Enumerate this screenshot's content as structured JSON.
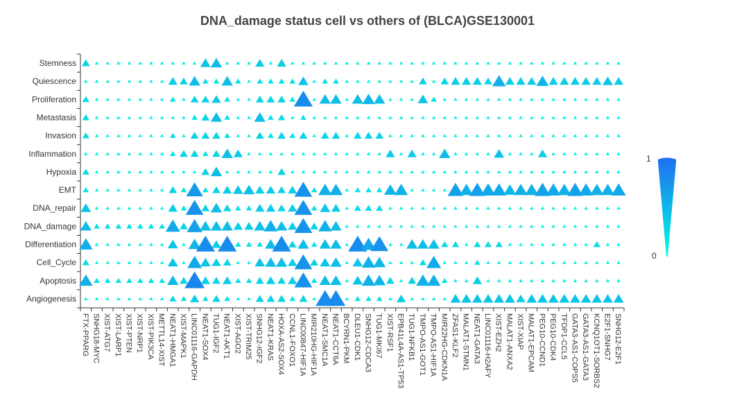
{
  "chart_data": {
    "type": "scatter",
    "title": "DNA_damage status cell vs others of (BLCA)GSE130001",
    "highlight_row": "DNA_damage",
    "highlight_color": "#ff0000",
    "colorbar": {
      "max_label": "1",
      "min_label": "0",
      "low_color": "#00ffe0",
      "high_color": "#1e6ff0"
    },
    "rows": [
      "Stemness",
      "Quiescence",
      "Proliferation",
      "Metastasis",
      "Invasion",
      "Inflammation",
      "Hypoxia",
      "EMT",
      "DNA_repair",
      "DNA_damage",
      "Differentiation",
      "Cell_Cycle",
      "Apoptosis",
      "Angiogenesis"
    ],
    "columns": [
      "FTX-PPARG",
      "SNHG18-MYC",
      "XIST-ATG7",
      "XIST-LARP1",
      "XIST-PTEN",
      "XIST-NRP1",
      "XIST-PIK3CA",
      "METTL14-XIST",
      "NEAT1-HMGA1",
      "XIST-MAPK1",
      "LINC01116-GAPDH",
      "NEAT1-SOX4",
      "TUG1-IGF2",
      "NEAT1-AKT1",
      "XIST-AGO2",
      "XIST-TRIM25",
      "SNHG12-IGF2",
      "NEAT1-KRAS",
      "HOXA-AS2-SOX4",
      "CCNL1-FOXO1",
      "LINC00847-HIF1A",
      "MIR210HG-HIF1A",
      "NEAT1-SMC1A",
      "NEAT1-CCT6A",
      "BCYRN1-PKM",
      "DLEU1-CDK1",
      "SNHG12-CDCA3",
      "TUG1-MKI67",
      "XIST-RSF1",
      "EPB41L4A-AS1-TP53",
      "TUG1-NFKB1",
      "TMPO-AS1-GOT1",
      "TMPO-AS1-HIF1A",
      "MIR22HG-CDKN1A",
      "ZFAS1-KLF2",
      "MALAT1-STMN1",
      "NEAT1-GATA3",
      "LINC01116-H2AFY",
      "XIST-EZH2",
      "MALAT1-ANXA2",
      "XIST-XIAP",
      "MALAT1-EPCAM",
      "PEG10-CCND1",
      "PEG10-CDK4",
      "TFDP1-CCL5",
      "GATA3-AS1-COPS5",
      "GATA3-AS1-GATA3",
      "KCNQ1OT1-SORBS2",
      "E2F1-SNHG7",
      "SNHG12-E2F1"
    ],
    "values": [
      [
        0.3,
        0.1,
        0.1,
        0.1,
        0.1,
        0.1,
        0.1,
        0.1,
        0.1,
        0.1,
        0.1,
        0.4,
        0.45,
        0.1,
        0.1,
        0.1,
        0.35,
        0.1,
        0.35,
        0.1,
        0.1,
        0.1,
        0.1,
        0.1,
        0.1,
        0.1,
        0.1,
        0.1,
        0.1,
        0.1,
        0.1,
        0.1,
        0.1,
        0.1,
        0.1,
        0.1,
        0.1,
        0.1,
        0.1,
        0.1,
        0.1,
        0.1,
        0.1,
        0.1,
        0.1,
        0.1,
        0.1,
        0.1,
        0.1,
        0.1
      ],
      [
        0.1,
        0.1,
        0.1,
        0.1,
        0.1,
        0.1,
        0.1,
        0.1,
        0.35,
        0.3,
        0.45,
        0.2,
        0.2,
        0.45,
        0.2,
        0.1,
        0.2,
        0.2,
        0.2,
        0.2,
        0.4,
        0.1,
        0.2,
        0.2,
        0.1,
        0.1,
        0.1,
        0.1,
        0.1,
        0.1,
        0.1,
        0.3,
        0.1,
        0.3,
        0.35,
        0.35,
        0.35,
        0.3,
        0.55,
        0.35,
        0.35,
        0.35,
        0.5,
        0.35,
        0.35,
        0.35,
        0.35,
        0.35,
        0.4,
        0.35
      ],
      [
        0.25,
        0.1,
        0.1,
        0.1,
        0.1,
        0.1,
        0.1,
        0.1,
        0.2,
        0.1,
        0.3,
        0.3,
        0.35,
        0.2,
        0.1,
        0.1,
        0.3,
        0.3,
        0.3,
        0.2,
        0.8,
        0.1,
        0.45,
        0.45,
        0.1,
        0.45,
        0.5,
        0.45,
        0.1,
        0.1,
        0.1,
        0.4,
        0.2,
        0.1,
        0.1,
        0.1,
        0.1,
        0.1,
        0.1,
        0.1,
        0.1,
        0.1,
        0.1,
        0.1,
        0.1,
        0.1,
        0.1,
        0.1,
        0.1,
        0.1
      ],
      [
        0.25,
        0.1,
        0.1,
        0.1,
        0.1,
        0.1,
        0.1,
        0.1,
        0.1,
        0.1,
        0.2,
        0.3,
        0.45,
        0.2,
        0.1,
        0.1,
        0.45,
        0.2,
        0.25,
        0.1,
        0.2,
        0.1,
        0.1,
        0.1,
        0.1,
        0.1,
        0.1,
        0.1,
        0.1,
        0.1,
        0.1,
        0.1,
        0.1,
        0.1,
        0.1,
        0.1,
        0.1,
        0.1,
        0.1,
        0.1,
        0.1,
        0.1,
        0.1,
        0.1,
        0.1,
        0.1,
        0.1,
        0.1,
        0.1,
        0.1
      ],
      [
        0.25,
        0.1,
        0.1,
        0.1,
        0.1,
        0.1,
        0.1,
        0.1,
        0.2,
        0.1,
        0.3,
        0.3,
        0.3,
        0.2,
        0.1,
        0.1,
        0.3,
        0.2,
        0.3,
        0.2,
        0.3,
        0.1,
        0.3,
        0.3,
        0.1,
        0.3,
        0.3,
        0.3,
        0.1,
        0.1,
        0.1,
        0.1,
        0.1,
        0.1,
        0.1,
        0.1,
        0.1,
        0.1,
        0.1,
        0.1,
        0.1,
        0.1,
        0.1,
        0.1,
        0.1,
        0.1,
        0.1,
        0.1,
        0.1,
        0.1
      ],
      [
        0.1,
        0.1,
        0.1,
        0.1,
        0.1,
        0.1,
        0.1,
        0.1,
        0.2,
        0.3,
        0.3,
        0.2,
        0.3,
        0.45,
        0.35,
        0.1,
        0.1,
        0.1,
        0.1,
        0.1,
        0.1,
        0.1,
        0.1,
        0.1,
        0.1,
        0.1,
        0.1,
        0.1,
        0.35,
        0.1,
        0.35,
        0.1,
        0.1,
        0.45,
        0.1,
        0.1,
        0.1,
        0.1,
        0.4,
        0.1,
        0.1,
        0.1,
        0.35,
        0.1,
        0.1,
        0.1,
        0.1,
        0.1,
        0.1,
        0.1
      ],
      [
        0.25,
        0.1,
        0.1,
        0.1,
        0.1,
        0.1,
        0.1,
        0.1,
        0.1,
        0.1,
        0.1,
        0.3,
        0.45,
        0.1,
        0.1,
        0.1,
        0.1,
        0.1,
        0.3,
        0.1,
        0.1,
        0.1,
        0.1,
        0.1,
        0.1,
        0.1,
        0.1,
        0.1,
        0.1,
        0.1,
        0.1,
        0.1,
        0.1,
        0.1,
        0.1,
        0.1,
        0.1,
        0.1,
        0.1,
        0.1,
        0.1,
        0.1,
        0.1,
        0.1,
        0.1,
        0.1,
        0.1,
        0.1,
        0.1,
        0.1
      ],
      [
        0.2,
        0.1,
        0.1,
        0.1,
        0.1,
        0.1,
        0.1,
        0.1,
        0.3,
        0.2,
        0.7,
        0.2,
        0.3,
        0.35,
        0.4,
        0.45,
        0.35,
        0.35,
        0.3,
        0.35,
        0.75,
        0.2,
        0.55,
        0.55,
        0.1,
        0.2,
        0.2,
        0.2,
        0.5,
        0.55,
        0.1,
        0.1,
        0.1,
        0.1,
        0.65,
        0.55,
        0.65,
        0.6,
        0.6,
        0.5,
        0.55,
        0.55,
        0.65,
        0.6,
        0.55,
        0.65,
        0.6,
        0.55,
        0.55,
        0.6
      ],
      [
        0.4,
        0.1,
        0.1,
        0.1,
        0.1,
        0.1,
        0.1,
        0.1,
        0.35,
        0.2,
        0.75,
        0.3,
        0.45,
        0.3,
        0.2,
        0.2,
        0.35,
        0.35,
        0.3,
        0.35,
        0.75,
        0.2,
        0.4,
        0.35,
        0.1,
        0.25,
        0.25,
        0.25,
        0.1,
        0.1,
        0.1,
        0.1,
        0.1,
        0.1,
        0.1,
        0.1,
        0.1,
        0.1,
        0.1,
        0.1,
        0.1,
        0.1,
        0.1,
        0.1,
        0.1,
        0.1,
        0.1,
        0.1,
        0.1,
        0.1
      ],
      [
        0.45,
        0.2,
        0.2,
        0.2,
        0.2,
        0.2,
        0.2,
        0.2,
        0.6,
        0.3,
        0.65,
        0.45,
        0.45,
        0.45,
        0.35,
        0.35,
        0.45,
        0.55,
        0.45,
        0.35,
        0.75,
        0.3,
        0.55,
        0.45,
        0.1,
        0.1,
        0.1,
        0.1,
        0.1,
        0.1,
        0.1,
        0.1,
        0.1,
        0.1,
        0.1,
        0.1,
        0.1,
        0.1,
        0.1,
        0.1,
        0.1,
        0.1,
        0.1,
        0.1,
        0.1,
        0.1,
        0.1,
        0.1,
        0.1,
        0.1
      ],
      [
        0.55,
        0.1,
        0.1,
        0.1,
        0.1,
        0.1,
        0.1,
        0.1,
        0.4,
        0.1,
        0.5,
        0.8,
        0.35,
        0.8,
        0.2,
        0.2,
        0.2,
        0.45,
        0.8,
        0.3,
        0.45,
        0.2,
        0.45,
        0.45,
        0.1,
        0.8,
        0.6,
        0.75,
        0.1,
        0.1,
        0.45,
        0.45,
        0.45,
        0.25,
        0.25,
        0.1,
        0.25,
        0.25,
        0.25,
        0.1,
        0.1,
        0.1,
        0.1,
        0.1,
        0.1,
        0.1,
        0.1,
        0.25,
        0.1,
        0.1
      ],
      [
        0.25,
        0.1,
        0.1,
        0.1,
        0.1,
        0.1,
        0.1,
        0.1,
        0.4,
        0.1,
        0.6,
        0.4,
        0.35,
        0.3,
        0.1,
        0.1,
        0.4,
        0.45,
        0.45,
        0.35,
        0.75,
        0.3,
        0.4,
        0.45,
        0.1,
        0.4,
        0.55,
        0.5,
        0.1,
        0.1,
        0.1,
        0.25,
        0.6,
        0.1,
        0.1,
        0.1,
        0.2,
        0.1,
        0.1,
        0.1,
        0.1,
        0.1,
        0.1,
        0.1,
        0.1,
        0.1,
        0.1,
        0.1,
        0.1,
        0.1
      ],
      [
        0.55,
        0.2,
        0.2,
        0.2,
        0.2,
        0.2,
        0.2,
        0.2,
        0.45,
        0.3,
        0.85,
        0.35,
        0.3,
        0.35,
        0.2,
        0.2,
        0.3,
        0.35,
        0.3,
        0.35,
        0.75,
        0.2,
        0.45,
        0.45,
        0.1,
        0.4,
        0.55,
        0.5,
        0.3,
        0.1,
        0.3,
        0.55,
        0.55,
        0.2,
        0.1,
        0.1,
        0.35,
        0.1,
        0.1,
        0.1,
        0.1,
        0.1,
        0.1,
        0.1,
        0.1,
        0.1,
        0.1,
        0.1,
        0.1,
        0.1
      ],
      [
        0.1,
        0.1,
        0.1,
        0.1,
        0.1,
        0.1,
        0.1,
        0.1,
        0.25,
        0.2,
        0.35,
        0.2,
        0.3,
        0.2,
        0.1,
        0.1,
        0.3,
        0.3,
        0.3,
        0.2,
        0.3,
        0.1,
        0.8,
        0.8,
        0.1,
        0.2,
        0.2,
        0.2,
        0.1,
        0.35,
        0.1,
        0.1,
        0.1,
        0.1,
        0.4,
        0.4,
        0.4,
        0.4,
        0.4,
        0.4,
        0.35,
        0.4,
        0.4,
        0.4,
        0.4,
        0.4,
        0.4,
        0.4,
        0.4,
        0.4
      ]
    ]
  }
}
